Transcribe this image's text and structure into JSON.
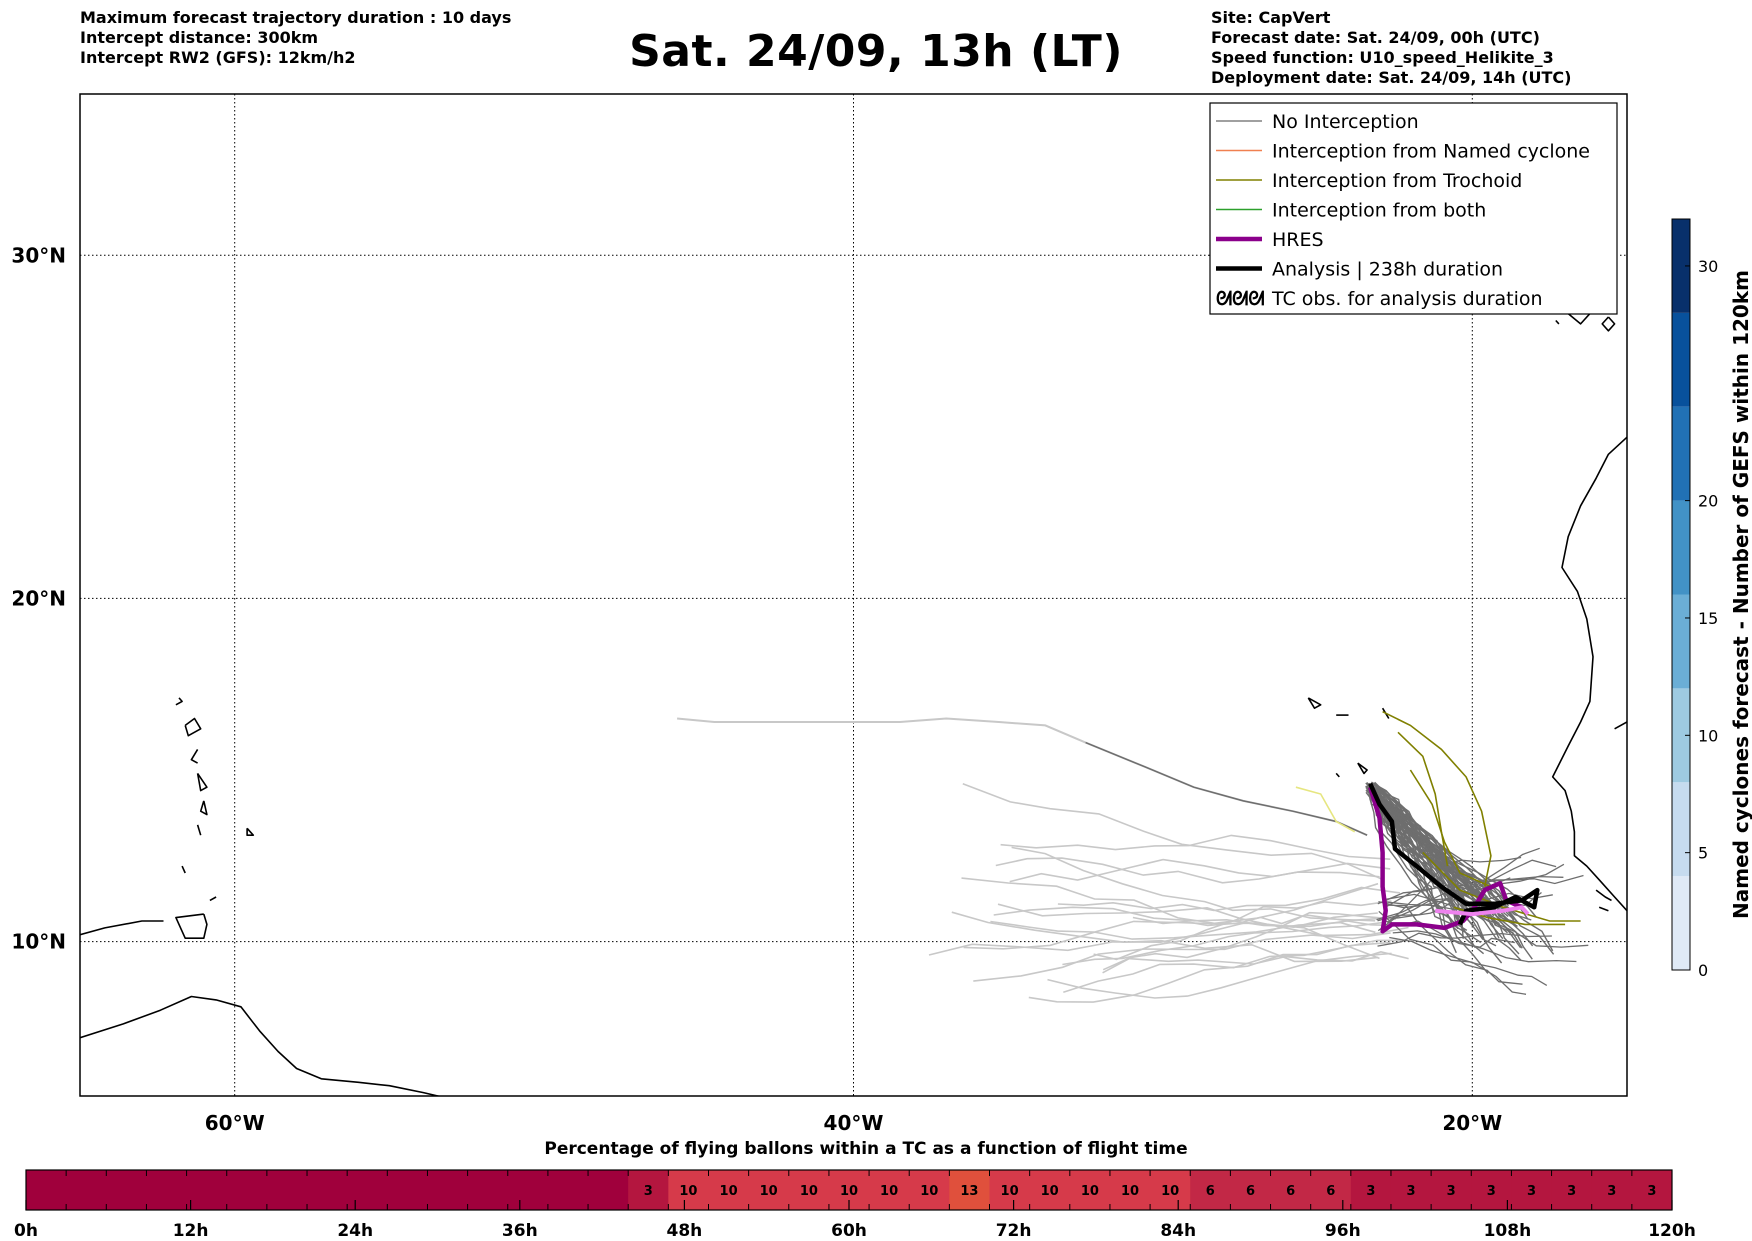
{
  "header": {
    "left": [
      "Maximum forecast trajectory duration : 10 days",
      "Intercept distance: 300km",
      "Intercept RW2 (GFS):  12km/h2"
    ],
    "title": "Sat. 24/09, 13h (LT)",
    "right": [
      "Site: CapVert",
      "Forecast date: Sat. 24/09, 00h (UTC)",
      "Speed function: U10_speed_Helikite_3",
      "Deployment date: Sat. 24/09, 14h (UTC)"
    ]
  },
  "chart_data": [
    {
      "type": "map",
      "xlim": [
        -65,
        -15
      ],
      "ylim": [
        5.5,
        34.7
      ],
      "x_ticks": [
        {
          "value": -60,
          "label": "60°W"
        },
        {
          "value": -40,
          "label": "40°W"
        },
        {
          "value": -20,
          "label": "20°W"
        }
      ],
      "y_ticks": [
        {
          "value": 10,
          "label": "10°N"
        },
        {
          "value": 20,
          "label": "20°N"
        },
        {
          "value": 30,
          "label": "30°N"
        }
      ],
      "grid": true,
      "legend_position": "top-right",
      "legend": [
        {
          "label": "No Interception",
          "color": "#808080",
          "style": "thin"
        },
        {
          "label": "Interception from Named cyclone",
          "color": "#f08050",
          "style": "thin"
        },
        {
          "label": "Interception from Trochoid",
          "color": "#808000",
          "style": "thin"
        },
        {
          "label": "Interception from both",
          "color": "#2ca02c",
          "style": "thin"
        },
        {
          "label": "HRES",
          "color": "#8b008b",
          "style": "thick"
        },
        {
          "label": "Analysis | 238h duration",
          "color": "#000000",
          "style": "thick"
        },
        {
          "label": "TC obs. for analysis duration",
          "color": "#000000",
          "style": "symbol"
        }
      ],
      "series": [
        {
          "name": "HRES",
          "color": "#8b008b",
          "points": [
            [
              -23.3,
              14.5
            ],
            [
              -23.0,
              13.6
            ],
            [
              -22.9,
              12.6
            ],
            [
              -22.9,
              11.6
            ],
            [
              -22.8,
              10.9
            ],
            [
              -22.9,
              10.3
            ],
            [
              -22.6,
              10.5
            ],
            [
              -21.8,
              10.5
            ],
            [
              -20.9,
              10.4
            ],
            [
              -20.3,
              10.6
            ],
            [
              -20.0,
              10.9
            ],
            [
              -19.6,
              11.5
            ],
            [
              -19.1,
              11.7
            ],
            [
              -18.9,
              11.2
            ],
            [
              -18.4,
              11.0
            ]
          ]
        },
        {
          "name": "Analysis | 238h duration",
          "color": "#000000",
          "points": [
            [
              -23.3,
              14.6
            ],
            [
              -23.0,
              14.0
            ],
            [
              -22.6,
              13.5
            ],
            [
              -22.5,
              12.7
            ],
            [
              -21.8,
              12.2
            ],
            [
              -21.0,
              11.6
            ],
            [
              -20.2,
              11.1
            ],
            [
              -19.3,
              11.1
            ],
            [
              -18.4,
              11.2
            ],
            [
              -17.9,
              11.5
            ],
            [
              -18.0,
              11.0
            ],
            [
              -18.6,
              11.3
            ],
            [
              -19.3,
              11.0
            ],
            [
              -20.2,
              10.9
            ],
            [
              -20.4,
              10.5
            ]
          ]
        },
        {
          "name": "HRES-light",
          "color": "#ee82ee",
          "points": [
            [
              -21.2,
              10.9
            ],
            [
              -20.0,
              10.8
            ],
            [
              -19.0,
              10.9
            ],
            [
              -18.4,
              11.0
            ],
            [
              -18.2,
              10.8
            ]
          ]
        }
      ],
      "ensemble": {
        "light_grey": "#c8c8c8",
        "dark_grey": "#6e6e6e",
        "trochoid": "#808000",
        "yellow": "#e6e680"
      }
    },
    {
      "type": "colorbar",
      "label": "Named cyclones forecast - Number of GEFS within 120km",
      "range": [
        0,
        32
      ],
      "ticks": [
        0,
        5,
        10,
        15,
        20,
        30
      ],
      "colors": [
        "#dfe9f6",
        "#c6dbef",
        "#9ecae1",
        "#6baed6",
        "#4292c6",
        "#2171b5",
        "#08519c",
        "#08306b"
      ]
    },
    {
      "type": "heatmap",
      "title": "Percentage of flying ballons within a TC as a function of flight time",
      "x_ticks": [
        "0h",
        "12h",
        "24h",
        "36h",
        "48h",
        "60h",
        "72h",
        "84h",
        "96h",
        "108h",
        "120h"
      ],
      "cell_hours": 3,
      "values": [
        0,
        0,
        0,
        0,
        0,
        0,
        0,
        0,
        0,
        0,
        0,
        0,
        0,
        0,
        0,
        3,
        10,
        10,
        10,
        10,
        10,
        10,
        10,
        13,
        10,
        10,
        10,
        10,
        10,
        6,
        6,
        6,
        6,
        3,
        3,
        3,
        3,
        3,
        3,
        3,
        3
      ]
    }
  ]
}
